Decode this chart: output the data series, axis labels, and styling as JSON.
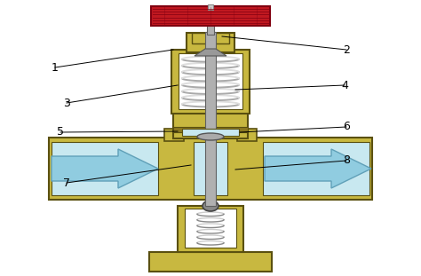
{
  "background_color": "#ffffff",
  "colors": {
    "body_fill": "#c8b840",
    "body_edge": "#5a5010",
    "body_dark": "#8a7820",
    "spring_light": "#cccccc",
    "spring_dark": "#888888",
    "handle_red": "#c01820",
    "handle_dark_red": "#800010",
    "handle_stem": "#b0b0b0",
    "stem_edge": "#606060",
    "light_blue": "#c8e8f0",
    "arrow_fill": "#90cce0",
    "arrow_edge": "#60a0b8",
    "black": "#000000",
    "white": "#ffffff",
    "dark_grey": "#444444",
    "mid_grey": "#888888"
  },
  "figsize": [
    4.74,
    3.11
  ],
  "dpi": 100
}
